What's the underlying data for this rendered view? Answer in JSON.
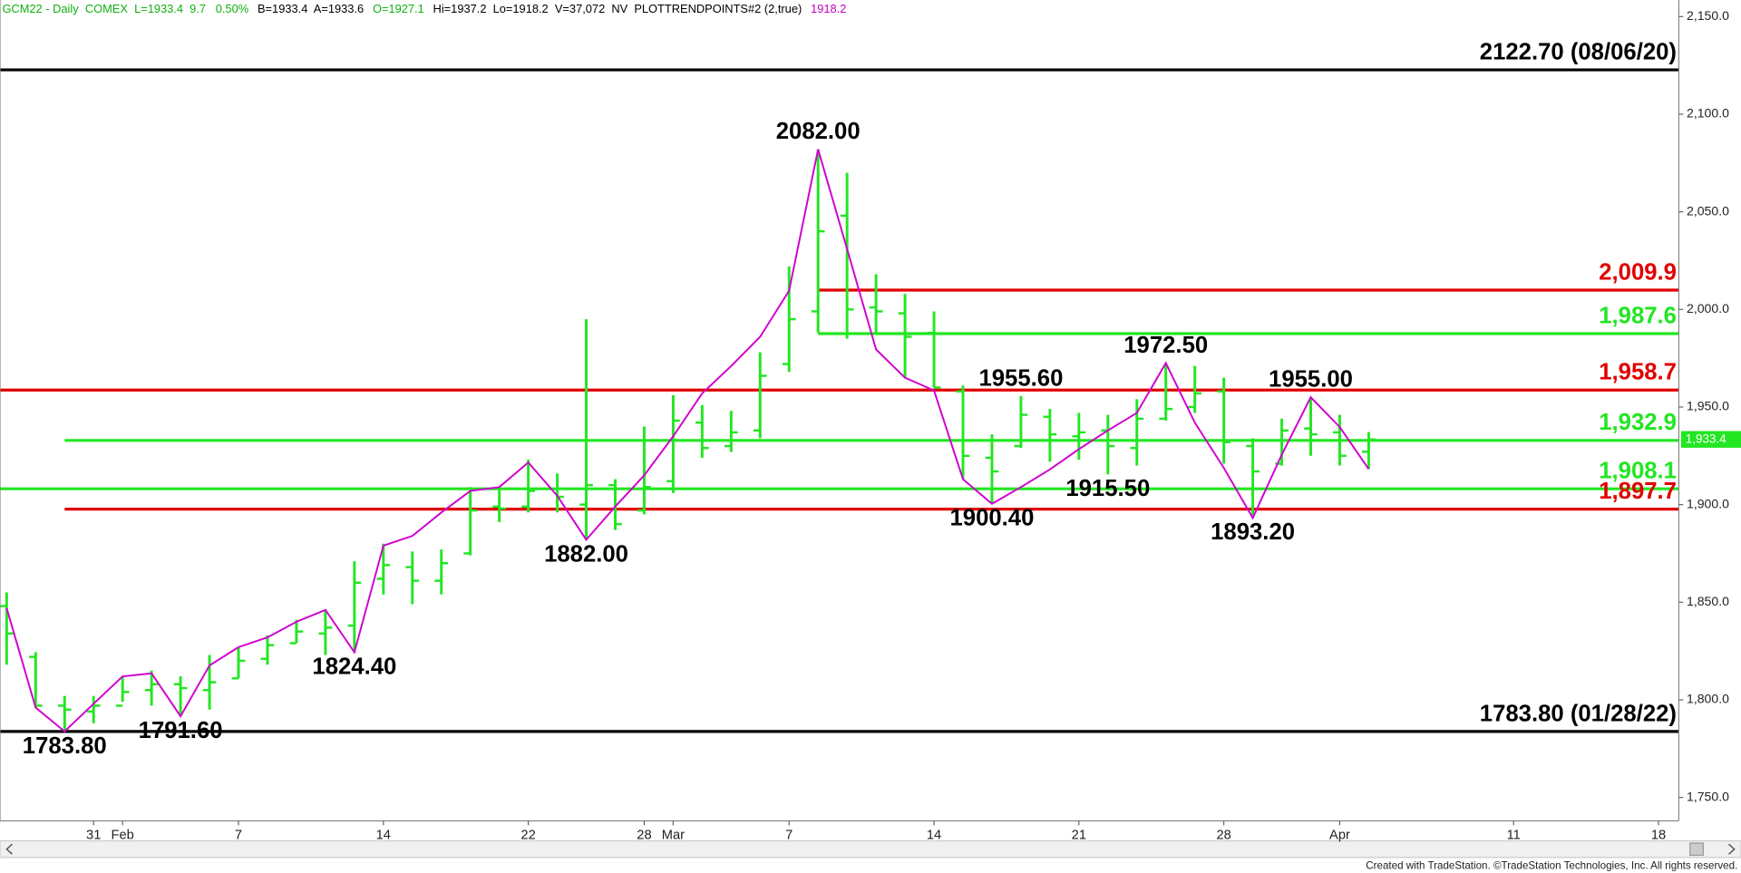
{
  "header": [
    {
      "text": "GCM22 - Daily  COMEX  L=1933.4  9.7   0.50%",
      "color": "#10b010"
    },
    {
      "text": "B=1933.4  A=1933.6",
      "color": "#000000"
    },
    {
      "text": "O=1927.1",
      "color": "#10b010"
    },
    {
      "text": "Hi=1937.2  Lo=1918.2  V=37,072  NV  PLOTTRENDPOINTS#2 (2,true)",
      "color": "#000000"
    },
    {
      "text": "1918.2",
      "color": "#c000c0"
    }
  ],
  "chart_data": {
    "type": "ohlc",
    "categories": [
      null,
      null,
      null,
      "31",
      "Feb",
      null,
      null,
      null,
      "7",
      null,
      null,
      null,
      null,
      "14",
      null,
      null,
      null,
      null,
      "22",
      null,
      null,
      null,
      "28",
      "Mar",
      null,
      null,
      null,
      "7",
      null,
      null,
      null,
      null,
      "14",
      null,
      null,
      null,
      null,
      "21",
      null,
      null,
      null,
      null,
      "28",
      null,
      null,
      null,
      "Apr",
      null,
      null,
      null,
      null,
      null,
      "11",
      null,
      null,
      null,
      null,
      "18"
    ],
    "open": [
      1848,
      1822,
      1797,
      1794,
      1797,
      1805,
      1808,
      1805,
      1811,
      1821,
      1829,
      1834,
      1838,
      1862,
      1868,
      1861,
      1875,
      1899,
      1899,
      1908,
      1900,
      1910,
      1897,
      1912,
      1942,
      1930,
      1938,
      1972,
      1999,
      2048,
      2001,
      1998,
      1988,
      1958,
      1924,
      1930,
      1945,
      1935,
      1938,
      1929,
      1944,
      1950,
      1958,
      1930,
      1921,
      1939,
      1937,
      1927.1,
      null,
      null,
      null,
      null,
      null,
      null,
      null,
      null,
      null,
      null
    ],
    "high": [
      1855,
      1824.4,
      1802,
      1802,
      1812,
      1815,
      1812,
      1823,
      1827,
      1833,
      1841,
      1846,
      1871,
      1880,
      1876,
      1877,
      1909,
      1909,
      1923,
      1916,
      1995,
      1913,
      1940,
      1956,
      1951,
      1948,
      1978,
      2022,
      2082,
      2070,
      2018,
      2008,
      1999,
      1961,
      1936,
      1955.6,
      1949,
      1947,
      1946,
      1954,
      1972.5,
      1971,
      1965,
      1934,
      1944,
      1955,
      1946,
      1937.2,
      null,
      null,
      null,
      null,
      null,
      null,
      null,
      null,
      null,
      null
    ],
    "low": [
      1818,
      1796,
      1783.8,
      1788,
      1799,
      1797,
      1791.6,
      1795,
      1811,
      1818,
      1829,
      1823,
      1824.4,
      1854,
      1849,
      1854,
      1874,
      1891,
      1896,
      1896,
      1882,
      1887,
      1895,
      1906,
      1924,
      1927,
      1934,
      1968,
      1988,
      1985,
      1988,
      1965,
      1960,
      1913,
      1900.4,
      1929,
      1922,
      1923,
      1915.5,
      1920,
      1943,
      1947,
      1921,
      1893.2,
      1920,
      1925,
      1920,
      1918.2,
      null,
      null,
      null,
      null,
      null,
      null,
      null,
      null,
      null,
      null
    ],
    "close": [
      1834,
      1797,
      1795,
      1797,
      1804,
      1808,
      1806,
      1809,
      1820,
      1828,
      1835,
      1837,
      1860,
      1869,
      1861,
      1870,
      1897,
      1898,
      1907,
      1904,
      1910,
      1890,
      1909,
      1943,
      1929,
      1937,
      1966,
      1995,
      2040,
      2000,
      1999,
      1986,
      1960,
      1925,
      1917,
      1946,
      1936,
      1937,
      1930,
      1944,
      1949,
      1957,
      1932,
      1917,
      1938,
      1936,
      1925,
      1933.4,
      null,
      null,
      null,
      null,
      null,
      null,
      null,
      null,
      null,
      null
    ],
    "color": "#22e622",
    "ylim": [
      1738,
      2158.5
    ],
    "yticks": [
      {
        "value": 1750,
        "label": "1,750.0"
      },
      {
        "value": 1800,
        "label": "1,800.0"
      },
      {
        "value": 1850,
        "label": "1,850.0"
      },
      {
        "value": 1900,
        "label": "1,900.0"
      },
      {
        "value": 1950,
        "label": "1,950.0"
      },
      {
        "value": 2000,
        "label": "2,000.0"
      },
      {
        "value": 2050,
        "label": "2,050.0"
      },
      {
        "value": 2100,
        "label": "2,100.0"
      },
      {
        "value": 2150,
        "label": "2,150.0"
      }
    ],
    "last": {
      "value": 1933.4,
      "label": "1,933.4",
      "color": "#22e622"
    },
    "trend": {
      "color": "#d000d0",
      "values": [
        1847,
        1796,
        1783.8,
        1798,
        1812,
        1813.6,
        1791.6,
        1817.6,
        1827,
        1832,
        1840,
        1846,
        1824.4,
        1879,
        1884,
        1896,
        1907,
        1909,
        1921.6,
        1904.5,
        1882,
        1899,
        1915,
        1935,
        1957,
        1971,
        1986,
        2009.6,
        2082,
        2031,
        1979.5,
        1965,
        1958.5,
        1913,
        1900.4,
        1909,
        1918,
        1928.4,
        1938,
        1947,
        1972.5,
        1942,
        1918.8,
        1893.2,
        1925.6,
        1955,
        1939.7,
        1918.2,
        null,
        null,
        null,
        null,
        null,
        null,
        null,
        null,
        null,
        null
      ]
    },
    "levels": [
      {
        "value": 2122.7,
        "label": "2122.70 (08/06/20)",
        "color": "#000000",
        "from": 0
      },
      {
        "value": 2009.9,
        "label": "2,009.9",
        "color": "#e00000",
        "from": 28
      },
      {
        "value": 1987.6,
        "label": "1,987.6",
        "color": "#22e622",
        "from": 28
      },
      {
        "value": 1958.7,
        "label": "1,958.7",
        "color": "#e00000",
        "from": 0
      },
      {
        "value": 1932.9,
        "label": "1,932.9",
        "color": "#22e622",
        "from": 2
      },
      {
        "value": 1908.1,
        "label": "1,908.1",
        "color": "#22e622",
        "from": 0
      },
      {
        "value": 1897.7,
        "label": "1,897.7",
        "color": "#e00000",
        "from": 2
      },
      {
        "value": 1783.8,
        "label": "1783.80 (01/28/22)",
        "color": "#000000",
        "from": 0
      }
    ],
    "pivots": [
      {
        "index": 2,
        "value": 1783.8,
        "label": "1783.80",
        "side": "below"
      },
      {
        "index": 6,
        "value": 1791.6,
        "label": "1791.60",
        "side": "below"
      },
      {
        "index": 12,
        "value": 1824.4,
        "label": "1824.40",
        "side": "below"
      },
      {
        "index": 20,
        "value": 1882,
        "label": "1882.00",
        "side": "below"
      },
      {
        "index": 28,
        "value": 2082,
        "label": "2082.00",
        "side": "above"
      },
      {
        "index": 35,
        "value": 1955.6,
        "label": "1955.60",
        "side": "above"
      },
      {
        "index": 34,
        "value": 1900.4,
        "label": "1900.40",
        "side": "below"
      },
      {
        "index": 38,
        "value": 1915.5,
        "label": "1915.50",
        "side": "below"
      },
      {
        "index": 40,
        "value": 1972.5,
        "label": "1972.50",
        "side": "above"
      },
      {
        "index": 43,
        "value": 1893.2,
        "label": "1893.20",
        "side": "below"
      },
      {
        "index": 45,
        "value": 1955,
        "label": "1955.00",
        "side": "above"
      }
    ]
  },
  "footer": "Created with TradeStation. ©TradeStation Technologies, Inc. All rights reserved."
}
